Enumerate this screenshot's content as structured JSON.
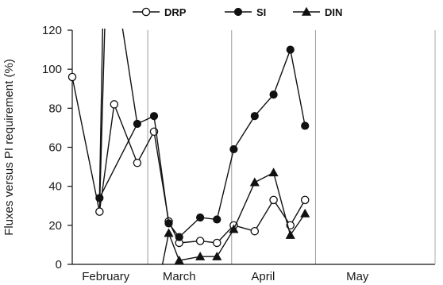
{
  "chart_data": {
    "type": "line",
    "title": "",
    "xlabel": "",
    "ylabel": "Fluxes versus PI requirement (%)",
    "ylim": [
      0,
      120
    ],
    "yticks": [
      0,
      20,
      40,
      60,
      80,
      100,
      120
    ],
    "x_range": [
      0,
      17.3
    ],
    "month_boundaries": [
      3.6,
      7.6,
      11.6
    ],
    "months": [
      {
        "label": "February",
        "x": 1.6
      },
      {
        "label": "March",
        "x": 5.1
      },
      {
        "label": "April",
        "x": 9.1
      },
      {
        "label": "May",
        "x": 13.6
      }
    ],
    "legend": {
      "position": "top"
    },
    "series": [
      {
        "name": "DRP",
        "marker": "circle-open",
        "x": [
          0,
          1.3,
          2.0,
          3.1,
          3.9,
          4.6,
          5.1,
          6.1,
          6.9,
          7.7,
          8.7,
          9.6,
          10.4,
          11.1,
          11.7
        ],
        "y": [
          96,
          27,
          82,
          52,
          68,
          22,
          11,
          12,
          11,
          20,
          17,
          33,
          20,
          33,
          null
        ],
        "segments_note": ""
      },
      {
        "name": "SI",
        "marker": "circle-filled",
        "x": [
          1.3,
          3.1,
          3.9,
          4.6,
          5.1,
          6.1,
          6.9,
          7.7,
          8.7,
          9.6,
          10.4,
          11.1,
          11.7
        ],
        "y": [
          34,
          72,
          76,
          21,
          14,
          24,
          23,
          59,
          76,
          87,
          110,
          71,
          null
        ]
      },
      {
        "name": "DIN",
        "marker": "triangle-filled",
        "x": [
          4.3,
          4.6,
          5.1,
          6.1,
          6.9,
          7.7,
          8.7,
          9.6,
          10.4,
          11.1,
          11.7
        ],
        "y": [
          0,
          16,
          2,
          4,
          4,
          18,
          42,
          47,
          15,
          26,
          null
        ]
      }
    ]
  }
}
